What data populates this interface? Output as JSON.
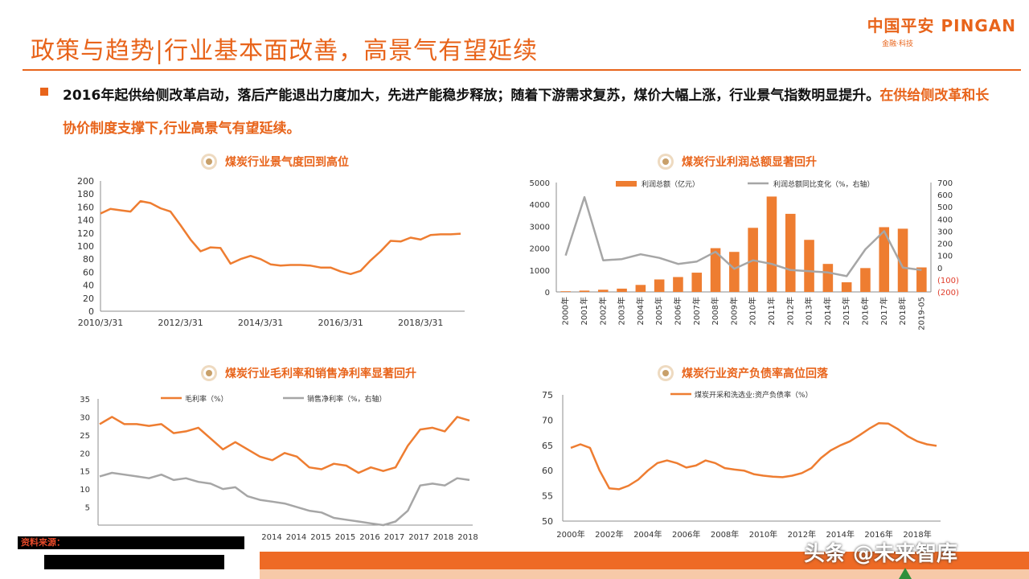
{
  "header": {
    "title": "政策与趋势|行业基本面改善，高景气有望延续",
    "brand_name": "中国平安 PINGAN",
    "brand_tag": "金融·科技"
  },
  "summary": {
    "text": "2016年起供给侧改革启动，落后产能退出力度加大，先进产能稳步释放；随着下游需求复苏，煤价大幅上涨，行业景气指数明显提升。",
    "highlight": "在供给侧改革和长协价制度支撑下,行业高景气有望延续。"
  },
  "footer": {
    "source_label": "资料来源：",
    "watermark": "头条 @未来智库"
  },
  "colors": {
    "accent": "#e8641b",
    "series_orange": "#ee7d31",
    "series_gray": "#a6a6a6",
    "negative_label": "#e03c2a"
  },
  "chart_data": [
    {
      "id": "prosperity",
      "type": "line",
      "title": "煤炭行业景气度回到高位",
      "x_tick_labels": [
        "2010/3/31",
        "2012/3/31",
        "2014/3/31",
        "2016/3/31",
        "2018/3/31"
      ],
      "ylim": [
        0,
        200
      ],
      "y_ticks": [
        0,
        20,
        40,
        60,
        80,
        100,
        120,
        140,
        160,
        180,
        200
      ],
      "grid": false,
      "series": [
        {
          "color": "#ee7d31",
          "x": [
            2010.0,
            2010.25,
            2010.5,
            2010.75,
            2011.0,
            2011.25,
            2011.5,
            2011.75,
            2012.0,
            2012.25,
            2012.5,
            2012.75,
            2013.0,
            2013.25,
            2013.5,
            2013.75,
            2014.0,
            2014.25,
            2014.5,
            2014.75,
            2015.0,
            2015.25,
            2015.5,
            2015.75,
            2016.0,
            2016.25,
            2016.5,
            2016.75,
            2017.0,
            2017.25,
            2017.5,
            2017.75,
            2018.0,
            2018.25,
            2018.5,
            2018.75,
            2019.0
          ],
          "y": [
            150,
            157,
            155,
            153,
            169,
            166,
            158,
            153,
            132,
            110,
            92,
            98,
            97,
            73,
            80,
            85,
            80,
            72,
            70,
            71,
            71,
            70,
            67,
            67,
            61,
            57,
            62,
            78,
            92,
            108,
            107,
            113,
            110,
            117,
            118,
            118,
            119
          ]
        }
      ]
    },
    {
      "id": "profit",
      "type": "bar",
      "title": "煤炭行业利润总额显著回升",
      "categories": [
        "2000年",
        "2001年",
        "2002年",
        "2003年",
        "2004年",
        "2005年",
        "2006年",
        "2007年",
        "2008年",
        "2009年",
        "2010年",
        "2011年",
        "2012年",
        "2013年",
        "2014年",
        "2015年",
        "2016年",
        "2017年",
        "2018年",
        "2019-05"
      ],
      "ylim": [
        0,
        5000
      ],
      "y_ticks": [
        0,
        1000,
        2000,
        3000,
        4000,
        5000
      ],
      "y2lim": [
        -200,
        700
      ],
      "y2_ticks": [
        -200,
        -100,
        0,
        100,
        200,
        300,
        400,
        500,
        600,
        700
      ],
      "y2_tick_labels": [
        "(200)",
        "(100)",
        "0",
        "100",
        "200",
        "300",
        "400",
        "500",
        "600",
        "700"
      ],
      "legend_position": "top",
      "series": [
        {
          "name": "利润总额（亿元）",
          "type": "bar",
          "color": "#ee7d31",
          "axis": "left",
          "values": [
            30,
            60,
            100,
            150,
            320,
            570,
            680,
            880,
            2000,
            1830,
            2930,
            4360,
            3570,
            2380,
            1280,
            440,
            1090,
            2960,
            2890,
            1120
          ]
        },
        {
          "name": "利润总额同比变化（%，右轴）",
          "type": "line",
          "color": "#a6a6a6",
          "axis": "right",
          "values": [
            100,
            580,
            60,
            70,
            110,
            80,
            30,
            50,
            130,
            -10,
            60,
            30,
            -20,
            -30,
            -40,
            -70,
            150,
            300,
            0,
            -20
          ]
        }
      ]
    },
    {
      "id": "margin",
      "type": "line",
      "title": "煤炭行业毛利率和销售净利率显著回升",
      "x_tick_labels": [
        "2014",
        "2014",
        "2015",
        "2015",
        "2016",
        "2017",
        "2017",
        "2018",
        "2018"
      ],
      "ylim": [
        0,
        35
      ],
      "y_ticks": [
        5,
        10,
        15,
        20,
        25,
        30,
        35
      ],
      "legend_position": "top",
      "series": [
        {
          "name": "毛利率（%）",
          "color": "#ee7d31",
          "x": [
            0,
            2,
            4,
            6,
            8,
            10,
            12,
            14,
            16,
            18,
            20,
            22,
            24,
            26,
            28,
            30,
            32,
            34,
            36,
            38,
            40,
            42,
            44,
            46,
            48,
            50,
            52,
            54,
            56,
            58,
            60
          ],
          "y": [
            28,
            30,
            28,
            28,
            27.5,
            28,
            25.5,
            26,
            27,
            24,
            21,
            23,
            21,
            19,
            18,
            20,
            19,
            16,
            15.5,
            17,
            16.5,
            14.5,
            16,
            15,
            16,
            22,
            26.5,
            27,
            26,
            30,
            29
          ]
        },
        {
          "name": "销售净利率（%，右轴）",
          "color": "#a6a6a6",
          "x": [
            0,
            2,
            4,
            6,
            8,
            10,
            12,
            14,
            16,
            18,
            20,
            22,
            24,
            26,
            28,
            30,
            32,
            34,
            36,
            38,
            40,
            42,
            44,
            46,
            48,
            50,
            52,
            54,
            56,
            58,
            60
          ],
          "y": [
            13.5,
            14.5,
            14,
            13.5,
            13,
            14,
            12.5,
            13,
            12,
            11.5,
            10,
            10.5,
            8,
            7,
            6.5,
            6,
            5,
            4,
            3.5,
            2,
            1.5,
            1,
            0.5,
            0,
            1,
            4,
            11,
            11.5,
            11,
            13,
            12.5
          ]
        }
      ]
    },
    {
      "id": "debt",
      "type": "line",
      "title": "煤炭行业资产负债率高位回落",
      "x_tick_labels": [
        "2000年",
        "2002年",
        "2004年",
        "2006年",
        "2008年",
        "2010年",
        "2012年",
        "2014年",
        "2016年",
        "2018年"
      ],
      "ylim": [
        50,
        75
      ],
      "y_ticks": [
        50,
        55,
        60,
        65,
        70,
        75
      ],
      "legend_position": "top",
      "series": [
        {
          "name": "煤炭开采和洗选业:资产负债率（%）",
          "color": "#ee7d31",
          "x": [
            2000,
            2000.5,
            2001,
            2001.5,
            2002,
            2002.5,
            2003,
            2003.5,
            2004,
            2004.5,
            2005,
            2005.5,
            2006,
            2006.5,
            2007,
            2007.5,
            2008,
            2008.5,
            2009,
            2009.5,
            2010,
            2010.5,
            2011,
            2011.5,
            2012,
            2012.5,
            2013,
            2013.5,
            2014,
            2014.5,
            2015,
            2015.5,
            2016,
            2016.5,
            2017,
            2017.5,
            2018,
            2018.5,
            2019
          ],
          "y": [
            64.5,
            65.2,
            64.5,
            60,
            56.5,
            56.3,
            57,
            58.2,
            60,
            61.5,
            62,
            61.5,
            60.6,
            61,
            62,
            61.5,
            60.5,
            60.2,
            60,
            59.3,
            59,
            58.8,
            58.7,
            59,
            59.5,
            60.5,
            62.5,
            64,
            65,
            65.8,
            67,
            68.3,
            69.4,
            69.3,
            68.2,
            66.8,
            65.8,
            65.2,
            64.9
          ]
        }
      ]
    }
  ]
}
